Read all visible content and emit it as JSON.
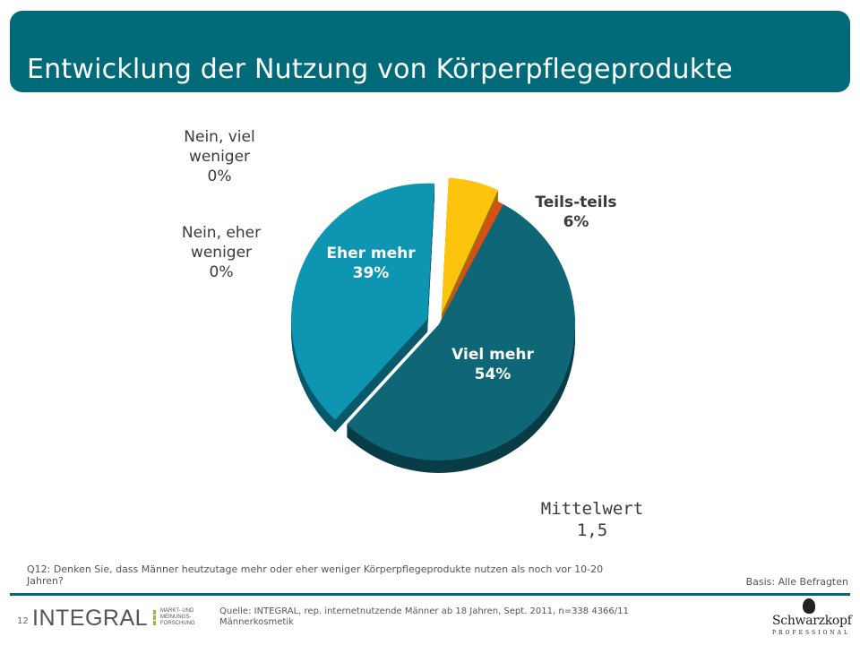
{
  "title": "Entwicklung der Nutzung von Körperpflegeprodukte",
  "chart_data": {
    "type": "pie",
    "slices": [
      {
        "label": "Eher mehr",
        "value": 39,
        "value_label": "39%",
        "color": "#0d95b1"
      },
      {
        "label": "Teils-teils",
        "value": 6,
        "value_label": "6%",
        "color": "#fcc40c"
      },
      {
        "label": "Viel mehr",
        "value": 54,
        "value_label": "54%",
        "color": "#0e6676"
      },
      {
        "label": "Nein, eher weniger",
        "value": 0,
        "value_label": "0%",
        "color": "#d94f13"
      },
      {
        "label": "Nein, viel weniger",
        "value": 0,
        "value_label": "0%",
        "color": "#d94f13"
      }
    ],
    "extra_slice_color": "#d94f13"
  },
  "labels": {
    "nein_viel": {
      "line1": "Nein, viel",
      "line2": "weniger",
      "value": "0%"
    },
    "nein_eher": {
      "line1": "Nein, eher",
      "line2": "weniger",
      "value": "0%"
    },
    "teils": {
      "line1": "Teils-teils",
      "value": "6%"
    },
    "eher_mehr": {
      "line1": "Eher mehr",
      "value": "39%"
    },
    "viel_mehr": {
      "line1": "Viel mehr",
      "value": "54%"
    }
  },
  "mean": {
    "label": "Mittelwert",
    "value": "1,5"
  },
  "question": "Q12: Denken Sie, dass Männer heutzutage mehr oder eher weniger Körperpflegeprodukte nutzen als noch vor 10-20 Jahren?",
  "basis": "Basis: Alle Befragten",
  "footer": {
    "page_number": "12",
    "logo_text": "INTEGRAL",
    "logo_sub": [
      "MARKT- UND",
      "MEINUNGS-",
      "FORSCHUNG"
    ],
    "source": "Quelle: INTEGRAL, rep. internetnutzende Männer ab 18 Jahren, Sept. 2011, n=338 4366/11 Männerkosmetik",
    "brand": "Schwarzkopf",
    "brand_sub": "PROFESSIONAL"
  }
}
